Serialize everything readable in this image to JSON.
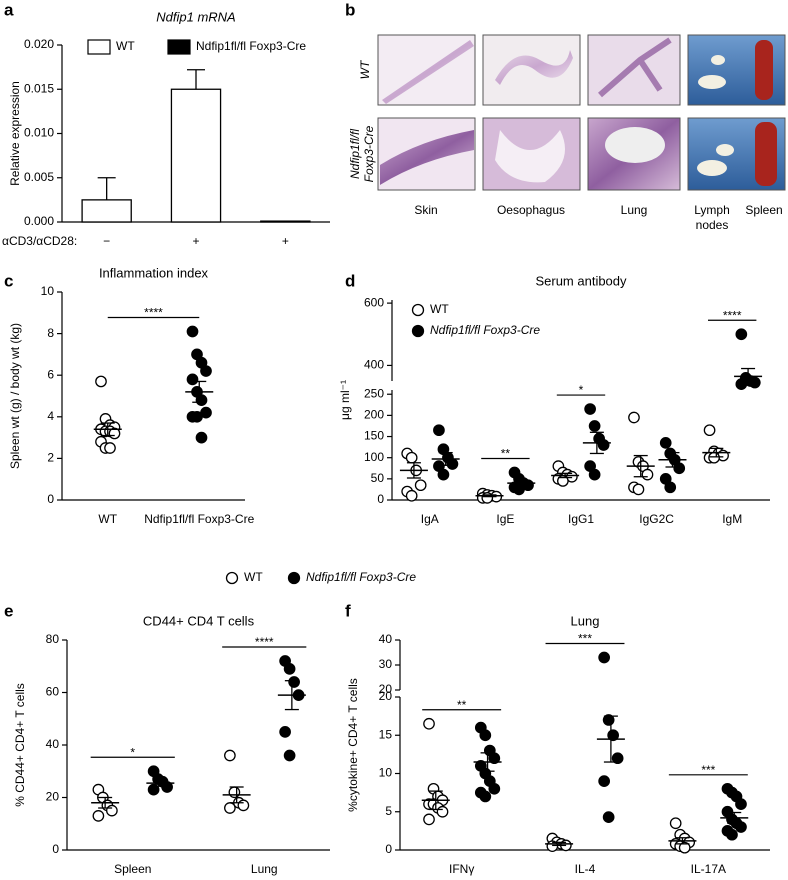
{
  "panel_labels": [
    "a",
    "b",
    "c",
    "d",
    "e",
    "f"
  ],
  "images": {
    "row_labels": [
      [
        "WT"
      ],
      [
        "Ndfip1fl/fl",
        "Foxp3-Cre"
      ]
    ],
    "column_labels": [
      [
        "Skin"
      ],
      [
        "Oesophagus"
      ],
      [
        "Lung"
      ],
      [
        "Lymph",
        "nodes"
      ],
      [
        "Spleen"
      ]
    ]
  },
  "chart_data": [
    {
      "type": "bar",
      "title": "Ndfip1 mRNA",
      "ylabel": "Relative expression",
      "xlabel": "αCD3/αCD28:",
      "categories": [
        "−",
        "+",
        "+"
      ],
      "series": [
        {
          "name": "WT",
          "color": "#ffffff",
          "values": [
            0.0025,
            0.015,
            null
          ],
          "errors": [
            0.0025,
            0.0022,
            null
          ]
        },
        {
          "name": "Ndfip1fl/fl Foxp3-Cre",
          "color": "#000000",
          "values": [
            null,
            null,
            0.0001
          ],
          "errors": [
            null,
            null,
            0
          ]
        }
      ],
      "ylim": [
        0,
        0.02
      ],
      "yticks": [
        {
          "value": 0,
          "label": "0.000"
        },
        {
          "value": 0.005,
          "label": "0.005"
        },
        {
          "value": 0.01,
          "label": "0.010"
        },
        {
          "value": 0.015,
          "label": "0.015"
        },
        {
          "value": 0.02,
          "label": "0.020"
        }
      ]
    },
    {
      "type": "dotplot",
      "title": "Inflammation index",
      "ylabel": "Spleen wt (g) / body wt (kg)",
      "categories": [
        "WT",
        "Ndfip1fl/fl Foxp3-Cre"
      ],
      "colors": [
        "#ffffff",
        "#000000"
      ],
      "values": [
        [
          5.7,
          3.9,
          3.6,
          3.5,
          3.4,
          3.3,
          3.3,
          3.2,
          2.8,
          2.5,
          2.5
        ],
        [
          8.1,
          7.0,
          6.6,
          6.2,
          5.8,
          5.2,
          4.8,
          4.2,
          4.0,
          4.0,
          3.0
        ]
      ],
      "mean": [
        3.4,
        5.2
      ],
      "sem": [
        0.3,
        0.5
      ],
      "significance": "****",
      "ylim": [
        0,
        10
      ],
      "yticks": [
        0,
        2,
        4,
        6,
        8,
        10
      ]
    },
    {
      "type": "dotplot",
      "title": "Serum antibody",
      "ylabel": "μg ml⁻¹",
      "categories": [
        "IgA",
        "IgE",
        "IgG1",
        "IgG2C",
        "IgM"
      ],
      "series": [
        {
          "name": "WT",
          "color": "#ffffff",
          "values": [
            [
              110,
              100,
              70,
              35,
              20,
              10
            ],
            [
              15,
              12,
              10,
              8,
              5,
              5
            ],
            [
              80,
              65,
              60,
              55,
              50,
              45
            ],
            [
              195,
              90,
              80,
              60,
              30,
              25
            ],
            [
              165,
              115,
              110,
              105,
              100,
              100
            ]
          ],
          "mean": [
            70,
            10,
            58,
            80,
            112
          ],
          "sem": [
            18,
            2,
            5,
            25,
            10
          ]
        },
        {
          "name": "Ndfip1fl/fl Foxp3-Cre",
          "color": "#000000",
          "values": [
            [
              165,
              120,
              100,
              85,
              80,
              60
            ],
            [
              65,
              50,
              40,
              35,
              30,
              25
            ],
            [
              215,
              175,
              145,
              130,
              80,
              60
            ],
            [
              135,
              110,
              95,
              75,
              50,
              30
            ],
            [
              500,
              360,
              350,
              345,
              340
            ]
          ],
          "mean": [
            97,
            40,
            135,
            95,
            365
          ],
          "sem": [
            15,
            7,
            25,
            17,
            25
          ]
        }
      ],
      "significance": [
        null,
        "**",
        "*",
        null,
        "****"
      ],
      "ylim": [
        0,
        260
      ],
      "yticks": [
        0,
        50,
        100,
        150,
        200,
        250
      ],
      "ylim_upper": [
        350,
        610
      ],
      "yticks_upper": [
        400,
        600
      ]
    },
    {
      "type": "dotplot",
      "title": "CD44+ CD4 T cells",
      "ylabel": "% CD44+ CD4+ T cells",
      "categories": [
        "Spleen",
        "Lung"
      ],
      "series": [
        {
          "name": "WT",
          "color": "#ffffff",
          "values": [
            [
              23,
              20,
              17,
              15,
              13
            ],
            [
              36,
              22,
              18,
              17,
              16
            ]
          ],
          "mean": [
            18,
            21
          ],
          "sem": [
            2,
            3
          ]
        },
        {
          "name": "Ndfip1fl/fl Foxp3-Cre",
          "color": "#000000",
          "values": [
            [
              30,
              27,
              26,
              24,
              23
            ],
            [
              72,
              69,
              64,
              59,
              45,
              36
            ]
          ],
          "mean": [
            25.5,
            59
          ],
          "sem": [
            1.2,
            5.5
          ]
        }
      ],
      "significance": [
        "*",
        "****"
      ],
      "ylim": [
        0,
        80
      ],
      "yticks": [
        0,
        20,
        40,
        60,
        80
      ]
    },
    {
      "type": "dotplot",
      "title": "Lung",
      "ylabel": "%cytokine+ CD4+ T cells",
      "categories": [
        "IFNγ",
        "IL-4",
        "IL-17A"
      ],
      "series": [
        {
          "name": "WT",
          "color": "#ffffff",
          "values": [
            [
              16.5,
              8,
              7,
              6.5,
              6,
              6,
              5.5,
              5,
              4
            ],
            [
              1.5,
              1,
              0.8,
              0.6,
              0.5
            ],
            [
              3.5,
              2,
              1.5,
              1,
              0.8,
              0.5,
              0.3
            ]
          ],
          "mean": [
            6.5,
            0.8,
            1.2
          ],
          "sem": [
            1.2,
            0.2,
            0.4
          ]
        },
        {
          "name": "Ndfip1fl/fl Foxp3-Cre",
          "color": "#000000",
          "values": [
            [
              16,
              15,
              13,
              12,
              11,
              10,
              9,
              8,
              7.5,
              7
            ],
            [
              33,
              17,
              15,
              12,
              9,
              4.3
            ],
            [
              8,
              7.5,
              7,
              6,
              5,
              4,
              3.5,
              3,
              2.5,
              2
            ]
          ],
          "mean": [
            11.5,
            14.5,
            4.2
          ],
          "sem": [
            1.2,
            3,
            0.7
          ]
        }
      ],
      "significance": [
        "**",
        "***",
        "***"
      ],
      "ylim": [
        0,
        20
      ],
      "yticks": [
        0,
        5,
        10,
        15,
        20
      ],
      "ylim_upper": [
        20,
        40
      ],
      "yticks_upper": [
        20,
        30,
        40
      ]
    }
  ]
}
